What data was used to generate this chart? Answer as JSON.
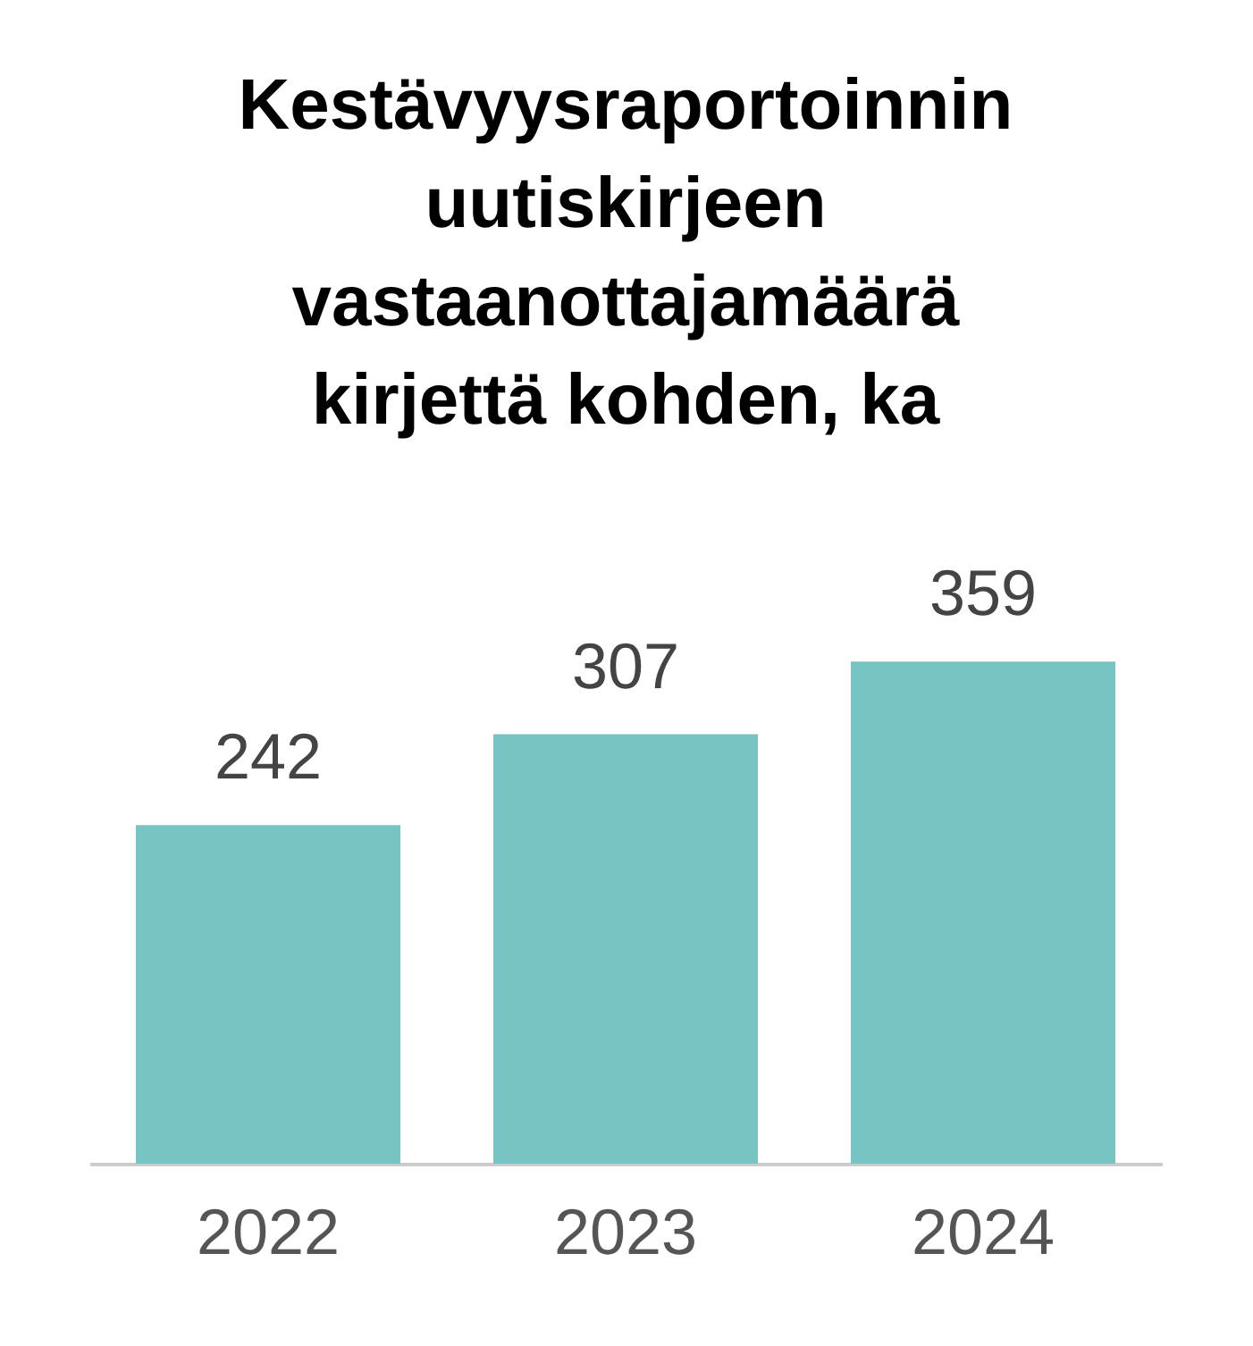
{
  "chart_data": {
    "type": "bar",
    "title": "Kestävyysraportoinnin uutiskirjeen vastaanottajamäärä kirjettä kohden, ka",
    "categories": [
      "2022",
      "2023",
      "2024"
    ],
    "values": [
      242,
      307,
      359
    ],
    "color": "#76c4c4",
    "data_labels": true
  }
}
